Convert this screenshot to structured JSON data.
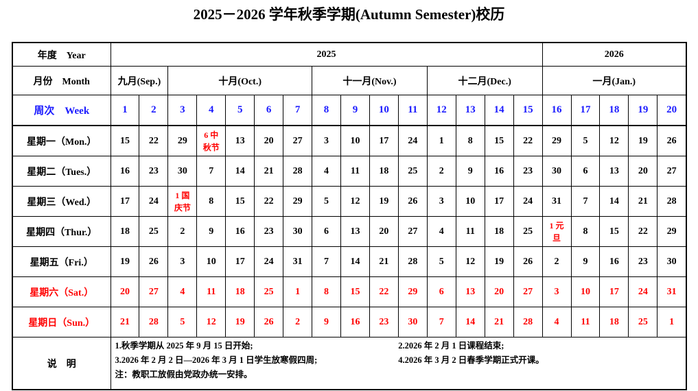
{
  "title": "2025－2026 学年秋季学期(Autumn Semester)校历",
  "labels": {
    "year": "年度　Year",
    "month": "月份　Month",
    "week": "周次　Week",
    "notes": "说　明"
  },
  "years": [
    {
      "label": "2025",
      "span": 15
    },
    {
      "label": "2026",
      "span": 5
    }
  ],
  "months": [
    {
      "label": "九月(Sep.)",
      "span": 2
    },
    {
      "label": "十月(Oct.)",
      "span": 5
    },
    {
      "label": "十一月(Nov.)",
      "span": 4
    },
    {
      "label": "十二月(Dec.)",
      "span": 4
    },
    {
      "label": "一月(Jan.)",
      "span": 5
    }
  ],
  "weeks": [
    "1",
    "2",
    "3",
    "4",
    "5",
    "6",
    "7",
    "8",
    "9",
    "10",
    "11",
    "12",
    "13",
    "14",
    "15",
    "16",
    "17",
    "18",
    "19",
    "20"
  ],
  "days": [
    {
      "label": "星期一（Mon.）",
      "weekend": false,
      "cells": [
        "15",
        "22",
        "29",
        "6 中|秋节",
        "13",
        "20",
        "27",
        "3",
        "10",
        "17",
        "24",
        "1",
        "8",
        "15",
        "22",
        "29",
        "5",
        "12",
        "19",
        "26"
      ]
    },
    {
      "label": "星期二（Tues.）",
      "weekend": false,
      "cells": [
        "16",
        "23",
        "30",
        "7",
        "14",
        "21",
        "28",
        "4",
        "11",
        "18",
        "25",
        "2",
        "9",
        "16",
        "23",
        "30",
        "6",
        "13",
        "20",
        "27"
      ]
    },
    {
      "label": "星期三（Wed.）",
      "weekend": false,
      "cells": [
        "17",
        "24",
        "1 国|庆节",
        "8",
        "15",
        "22",
        "29",
        "5",
        "12",
        "19",
        "26",
        "3",
        "10",
        "17",
        "24",
        "31",
        "7",
        "14",
        "21",
        "28"
      ]
    },
    {
      "label": "星期四（Thur.）",
      "weekend": false,
      "cells": [
        "18",
        "25",
        "2",
        "9",
        "16",
        "23",
        "30",
        "6",
        "13",
        "20",
        "27",
        "4",
        "11",
        "18",
        "25",
        "1 元|旦",
        "8",
        "15",
        "22",
        "29"
      ]
    },
    {
      "label": "星期五（Fri.）",
      "weekend": false,
      "cells": [
        "19",
        "26",
        "3",
        "10",
        "17",
        "24",
        "31",
        "7",
        "14",
        "21",
        "28",
        "5",
        "12",
        "19",
        "26",
        "2",
        "9",
        "16",
        "23",
        "30"
      ]
    },
    {
      "label": "星期六（Sat.）",
      "weekend": true,
      "cells": [
        "20",
        "27",
        "4",
        "11",
        "18",
        "25",
        "1",
        "8",
        "15",
        "22",
        "29",
        "6",
        "13",
        "20",
        "27",
        "3",
        "10",
        "17",
        "24",
        "31"
      ]
    },
    {
      "label": "星期日（Sun.）",
      "weekend": true,
      "cells": [
        "21",
        "28",
        "5",
        "12",
        "19",
        "26",
        "2",
        "9",
        "16",
        "23",
        "30",
        "7",
        "14",
        "21",
        "28",
        "4",
        "11",
        "18",
        "25",
        "1"
      ]
    }
  ],
  "notes": [
    [
      "1.秋季学期从 2025 年 9 月 15 日开始;",
      "2.2026 年 2 月 1 日课程结束;"
    ],
    [
      "3.2026 年 2 月 2 日—2026 年 3 月 1 日学生放寒假四周;",
      "4.2026 年 3 月 2 日春季学期正式开课。"
    ],
    [
      "注：教职工放假由党政办统一安排。"
    ]
  ],
  "colors": {
    "week": "#1a1aff",
    "weekend": "#ff0000",
    "holiday": "#ff0000"
  }
}
